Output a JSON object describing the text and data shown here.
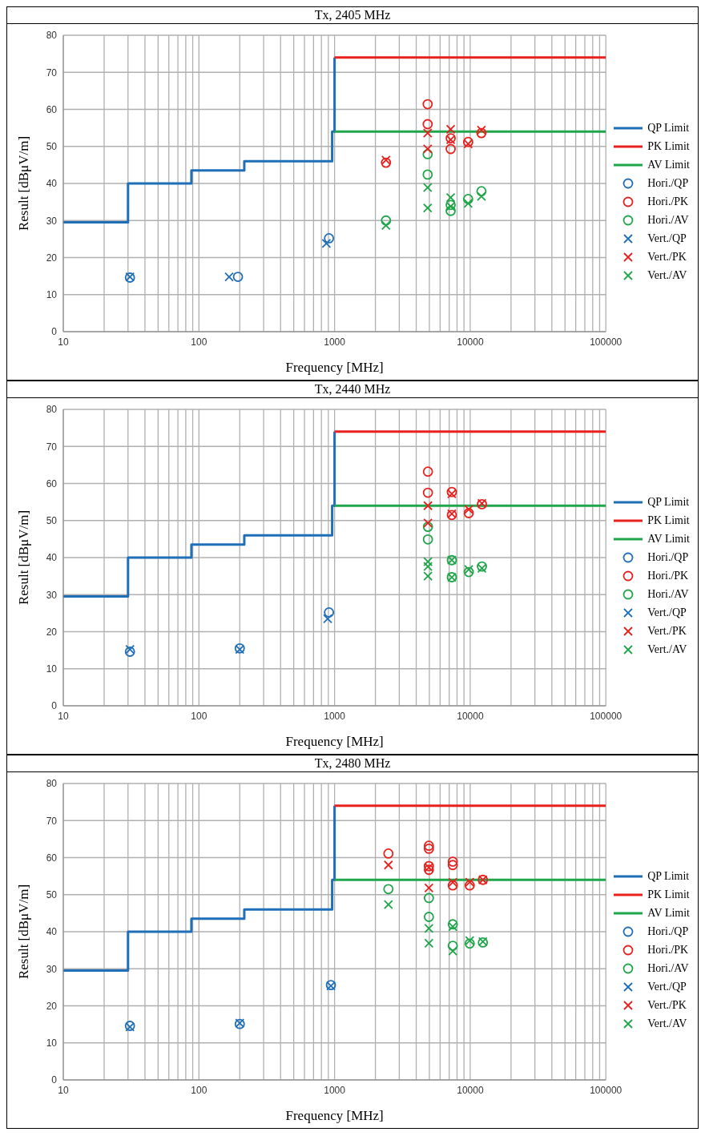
{
  "chart_data": [
    {
      "type": "scatter",
      "title": "Tx, 2405 MHz",
      "xlabel": "Frequency [MHz]",
      "ylabel": "Result [dBμV/m]",
      "log": "x",
      "grid": true,
      "legend": "right",
      "xlim": [
        10,
        100000
      ],
      "ylim": [
        0,
        80
      ],
      "xticks": [
        10,
        {
          "value": 20,
          "label": null
        },
        {
          "value": 30,
          "label": null
        },
        {
          "value": 40,
          "label": null
        },
        {
          "value": 50,
          "label": null
        },
        {
          "value": 60,
          "label": null
        },
        {
          "value": 70,
          "label": null
        },
        {
          "value": 80,
          "label": null
        },
        {
          "value": 90,
          "label": null
        },
        100,
        {
          "value": 200,
          "label": null
        },
        {
          "value": 300,
          "label": null
        },
        {
          "value": 400,
          "label": null
        },
        {
          "value": 500,
          "label": null
        },
        {
          "value": 600,
          "label": null
        },
        {
          "value": 700,
          "label": null
        },
        {
          "value": 800,
          "label": null
        },
        {
          "value": 900,
          "label": null
        },
        1000,
        {
          "value": 2000,
          "label": null
        },
        {
          "value": 3000,
          "label": null
        },
        {
          "value": 4000,
          "label": null
        },
        {
          "value": 5000,
          "label": null
        },
        {
          "value": 6000,
          "label": null
        },
        {
          "value": 7000,
          "label": null
        },
        {
          "value": 8000,
          "label": null
        },
        {
          "value": 9000,
          "label": null
        },
        10000,
        {
          "value": 20000,
          "label": null
        },
        {
          "value": 30000,
          "label": null
        },
        {
          "value": 40000,
          "label": null
        },
        {
          "value": 50000,
          "label": null
        },
        {
          "value": 60000,
          "label": null
        },
        {
          "value": 70000,
          "label": null
        },
        {
          "value": 80000,
          "label": null
        },
        {
          "value": 90000,
          "label": null
        },
        100000
      ],
      "yticks": [
        0,
        10,
        20,
        30,
        40,
        50,
        60,
        70,
        80
      ],
      "series": [
        {
          "name": "QP Limit",
          "type": "line",
          "marker": "none",
          "color": "#1f6fb8",
          "x": [
            10,
            30,
            30,
            88,
            88,
            216,
            216,
            960,
            960,
            1000,
            1000
          ],
          "values": [
            29.5,
            29.5,
            40,
            40,
            43.5,
            43.5,
            46,
            46,
            54,
            54,
            74
          ]
        },
        {
          "name": "PK Limit",
          "type": "line",
          "marker": "none",
          "color": "#e8211e",
          "x": [
            1000,
            100000
          ],
          "values": [
            74,
            74
          ]
        },
        {
          "name": "AV Limit",
          "type": "line",
          "marker": "none",
          "color": "#1fa64a",
          "x": [
            1000,
            100000
          ],
          "values": [
            54,
            54
          ]
        },
        {
          "name": "Hori./QP",
          "type": "scatter",
          "marker": "circle",
          "color": "#1f6fb8",
          "x": [
            31,
            194,
            910
          ],
          "values": [
            14.6,
            14.8,
            25.2
          ]
        },
        {
          "name": "Hori./PK",
          "type": "scatter",
          "marker": "circle",
          "color": "#e8211e",
          "x": [
            2394,
            4856,
            4856,
            7180,
            7180,
            9660,
            12100
          ],
          "values": [
            45.6,
            61.4,
            56.0,
            52.2,
            49.3,
            51.2,
            53.6
          ]
        },
        {
          "name": "Hori./AV",
          "type": "scatter",
          "marker": "circle",
          "color": "#1fa64a",
          "x": [
            2394,
            4856,
            4856,
            7180,
            7180,
            9660,
            12100
          ],
          "values": [
            30.0,
            47.9,
            42.4,
            34.2,
            32.6,
            35.8,
            37.9
          ]
        },
        {
          "name": "Vert./QP",
          "type": "scatter",
          "marker": "cross",
          "color": "#1f6fb8",
          "x": [
            31,
            167,
            870
          ],
          "values": [
            14.8,
            14.8,
            23.8
          ]
        },
        {
          "name": "Vert./PK",
          "type": "scatter",
          "marker": "cross",
          "color": "#e8211e",
          "x": [
            2394,
            4856,
            4856,
            7180,
            7180,
            9660,
            12100
          ],
          "values": [
            46.3,
            53.6,
            49.3,
            54.6,
            51.8,
            50.7,
            54.4
          ]
        },
        {
          "name": "Vert./AV",
          "type": "scatter",
          "marker": "cross",
          "color": "#1fa64a",
          "x": [
            2394,
            4856,
            4856,
            7180,
            7180,
            9660,
            12100
          ],
          "values": [
            28.7,
            38.9,
            33.4,
            36.2,
            33.8,
            34.6,
            36.5
          ]
        }
      ]
    },
    {
      "type": "scatter",
      "title": "Tx, 2440 MHz",
      "xlabel": "Frequency [MHz]",
      "ylabel": "Result [dBμV/m]",
      "log": "x",
      "grid": true,
      "legend": "right",
      "xlim": [
        10,
        100000
      ],
      "ylim": [
        0,
        80
      ],
      "xticks": [
        10,
        {
          "value": 20,
          "label": null
        },
        {
          "value": 30,
          "label": null
        },
        {
          "value": 40,
          "label": null
        },
        {
          "value": 50,
          "label": null
        },
        {
          "value": 60,
          "label": null
        },
        {
          "value": 70,
          "label": null
        },
        {
          "value": 80,
          "label": null
        },
        {
          "value": 90,
          "label": null
        },
        100,
        {
          "value": 200,
          "label": null
        },
        {
          "value": 300,
          "label": null
        },
        {
          "value": 400,
          "label": null
        },
        {
          "value": 500,
          "label": null
        },
        {
          "value": 600,
          "label": null
        },
        {
          "value": 700,
          "label": null
        },
        {
          "value": 800,
          "label": null
        },
        {
          "value": 900,
          "label": null
        },
        1000,
        {
          "value": 2000,
          "label": null
        },
        {
          "value": 3000,
          "label": null
        },
        {
          "value": 4000,
          "label": null
        },
        {
          "value": 5000,
          "label": null
        },
        {
          "value": 6000,
          "label": null
        },
        {
          "value": 7000,
          "label": null
        },
        {
          "value": 8000,
          "label": null
        },
        {
          "value": 9000,
          "label": null
        },
        10000,
        {
          "value": 20000,
          "label": null
        },
        {
          "value": 30000,
          "label": null
        },
        {
          "value": 40000,
          "label": null
        },
        {
          "value": 50000,
          "label": null
        },
        {
          "value": 60000,
          "label": null
        },
        {
          "value": 70000,
          "label": null
        },
        {
          "value": 80000,
          "label": null
        },
        {
          "value": 90000,
          "label": null
        },
        100000
      ],
      "yticks": [
        0,
        10,
        20,
        30,
        40,
        50,
        60,
        70,
        80
      ],
      "series": [
        {
          "name": "QP Limit",
          "type": "line",
          "marker": "none",
          "color": "#1f6fb8",
          "x": [
            10,
            30,
            30,
            88,
            88,
            216,
            216,
            960,
            960,
            1000,
            1000
          ],
          "values": [
            29.5,
            29.5,
            40,
            40,
            43.5,
            43.5,
            46,
            46,
            54,
            54,
            74
          ]
        },
        {
          "name": "PK Limit",
          "type": "line",
          "marker": "none",
          "color": "#e8211e",
          "x": [
            1000,
            100000
          ],
          "values": [
            74,
            74
          ]
        },
        {
          "name": "AV Limit",
          "type": "line",
          "marker": "none",
          "color": "#1fa64a",
          "x": [
            1000,
            100000
          ],
          "values": [
            54,
            54
          ]
        },
        {
          "name": "Hori./QP",
          "type": "scatter",
          "marker": "circle",
          "color": "#1f6fb8",
          "x": [
            31,
            200,
            910
          ],
          "values": [
            14.6,
            15.5,
            25.2
          ]
        },
        {
          "name": "Hori./PK",
          "type": "scatter",
          "marker": "circle",
          "color": "#e8211e",
          "x": [
            4880,
            4880,
            7320,
            7320,
            9760,
            12200
          ],
          "values": [
            63.2,
            57.5,
            57.7,
            51.5,
            52.0,
            54.4
          ]
        },
        {
          "name": "Hori./AV",
          "type": "scatter",
          "marker": "circle",
          "color": "#1fa64a",
          "x": [
            4880,
            4880,
            7320,
            7320,
            9760,
            12200
          ],
          "values": [
            48.3,
            44.9,
            39.3,
            34.7,
            36.1,
            37.6
          ]
        },
        {
          "name": "Vert./QP",
          "type": "scatter",
          "marker": "cross",
          "color": "#1f6fb8",
          "x": [
            31,
            200,
            890
          ],
          "values": [
            15.2,
            15.2,
            23.5
          ]
        },
        {
          "name": "Vert./PK",
          "type": "scatter",
          "marker": "cross",
          "color": "#e8211e",
          "x": [
            4880,
            4880,
            7320,
            7320,
            9760,
            12200
          ],
          "values": [
            54.0,
            49.3,
            57.2,
            51.8,
            53.0,
            54.6
          ]
        },
        {
          "name": "Vert./AV",
          "type": "scatter",
          "marker": "cross",
          "color": "#1fa64a",
          "x": [
            4880,
            4880,
            4880,
            7320,
            7320,
            9760,
            12200
          ],
          "values": [
            38.9,
            37.6,
            35.0,
            39.3,
            34.7,
            36.8,
            37.1
          ]
        }
      ]
    },
    {
      "type": "scatter",
      "title": "Tx, 2480 MHz",
      "xlabel": "Frequency [MHz]",
      "ylabel": "Result [dBμV/m]",
      "log": "x",
      "grid": true,
      "legend": "right",
      "xlim": [
        10,
        100000
      ],
      "ylim": [
        0,
        80
      ],
      "xticks": [
        10,
        {
          "value": 20,
          "label": null
        },
        {
          "value": 30,
          "label": null
        },
        {
          "value": 40,
          "label": null
        },
        {
          "value": 50,
          "label": null
        },
        {
          "value": 60,
          "label": null
        },
        {
          "value": 70,
          "label": null
        },
        {
          "value": 80,
          "label": null
        },
        {
          "value": 90,
          "label": null
        },
        100,
        {
          "value": 200,
          "label": null
        },
        {
          "value": 300,
          "label": null
        },
        {
          "value": 400,
          "label": null
        },
        {
          "value": 500,
          "label": null
        },
        {
          "value": 600,
          "label": null
        },
        {
          "value": 700,
          "label": null
        },
        {
          "value": 800,
          "label": null
        },
        {
          "value": 900,
          "label": null
        },
        1000,
        {
          "value": 2000,
          "label": null
        },
        {
          "value": 3000,
          "label": null
        },
        {
          "value": 4000,
          "label": null
        },
        {
          "value": 5000,
          "label": null
        },
        {
          "value": 6000,
          "label": null
        },
        {
          "value": 7000,
          "label": null
        },
        {
          "value": 8000,
          "label": null
        },
        {
          "value": 9000,
          "label": null
        },
        10000,
        {
          "value": 20000,
          "label": null
        },
        {
          "value": 30000,
          "label": null
        },
        {
          "value": 40000,
          "label": null
        },
        {
          "value": 50000,
          "label": null
        },
        {
          "value": 60000,
          "label": null
        },
        {
          "value": 70000,
          "label": null
        },
        {
          "value": 80000,
          "label": null
        },
        {
          "value": 90000,
          "label": null
        },
        100000
      ],
      "yticks": [
        0,
        10,
        20,
        30,
        40,
        50,
        60,
        70,
        80
      ],
      "series": [
        {
          "name": "QP Limit",
          "type": "line",
          "marker": "none",
          "color": "#1f6fb8",
          "x": [
            10,
            30,
            30,
            88,
            88,
            216,
            216,
            960,
            960,
            1000,
            1000
          ],
          "values": [
            29.5,
            29.5,
            40,
            40,
            43.5,
            43.5,
            46,
            46,
            54,
            54,
            74
          ]
        },
        {
          "name": "PK Limit",
          "type": "line",
          "marker": "none",
          "color": "#e8211e",
          "x": [
            1000,
            100000
          ],
          "values": [
            74,
            74
          ]
        },
        {
          "name": "AV Limit",
          "type": "line",
          "marker": "none",
          "color": "#1fa64a",
          "x": [
            1000,
            100000
          ],
          "values": [
            54,
            54
          ]
        },
        {
          "name": "Hori./QP",
          "type": "scatter",
          "marker": "circle",
          "color": "#1f6fb8",
          "x": [
            31,
            200,
            940
          ],
          "values": [
            14.6,
            15.1,
            25.6
          ]
        },
        {
          "name": "Hori./PK",
          "type": "scatter",
          "marker": "circle",
          "color": "#e8211e",
          "x": [
            2494,
            4960,
            4960,
            4960,
            4960,
            7440,
            7440,
            7440,
            9920,
            12400
          ],
          "values": [
            61.1,
            63.2,
            62.4,
            57.7,
            56.7,
            58.9,
            58.0,
            52.5,
            52.5,
            54.0
          ]
        },
        {
          "name": "Hori./AV",
          "type": "scatter",
          "marker": "circle",
          "color": "#1fa64a",
          "x": [
            2494,
            4960,
            4960,
            7440,
            7440,
            9920,
            12400
          ],
          "values": [
            51.5,
            49.1,
            44.0,
            42.0,
            36.2,
            36.8,
            37.1
          ]
        },
        {
          "name": "Vert./QP",
          "type": "scatter",
          "marker": "cross",
          "color": "#1f6fb8",
          "x": [
            31,
            200,
            940
          ],
          "values": [
            14.3,
            15.3,
            25.4
          ]
        },
        {
          "name": "Vert./PK",
          "type": "scatter",
          "marker": "cross",
          "color": "#e8211e",
          "x": [
            2494,
            4960,
            4960,
            7440,
            9920,
            12400
          ],
          "values": [
            58.0,
            57.3,
            51.8,
            53.3,
            53.4,
            54.0
          ]
        },
        {
          "name": "Vert./AV",
          "type": "scatter",
          "marker": "cross",
          "color": "#1fa64a",
          "x": [
            2494,
            4960,
            4960,
            7440,
            7440,
            9920,
            12400
          ],
          "values": [
            47.3,
            40.9,
            36.9,
            41.4,
            34.8,
            37.6,
            37.3
          ]
        }
      ]
    }
  ]
}
